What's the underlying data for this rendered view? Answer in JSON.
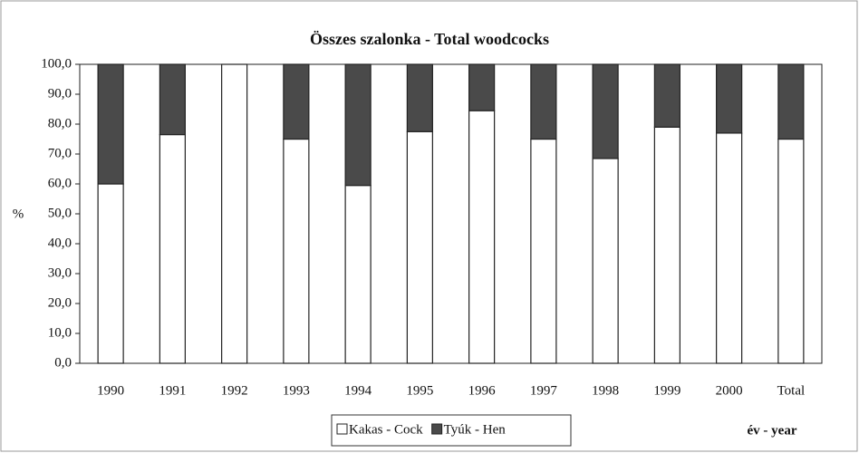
{
  "chart_data": {
    "type": "stacked_bar",
    "title": "Összes szalonka - Total  woodcocks",
    "x_label": "év - year",
    "y_label": "%",
    "categories": [
      "1990",
      "1991",
      "1992",
      "1993",
      "1994",
      "1995",
      "1996",
      "1997",
      "1998",
      "1999",
      "2000",
      "Total"
    ],
    "series": [
      {
        "name": "Kakas - Cock",
        "color": "#ffffff",
        "values": [
          60,
          76.5,
          100,
          75,
          59.5,
          77.5,
          84.5,
          75,
          68.5,
          79,
          77,
          75
        ]
      },
      {
        "name": "Tyúk - Hen",
        "color": "#4a4a4a",
        "values": [
          40,
          23.5,
          0,
          25,
          40.5,
          22.5,
          15.5,
          25,
          31.5,
          21,
          23,
          25
        ]
      }
    ],
    "ylim": [
      0,
      100
    ],
    "yticks": [
      {
        "value": 0,
        "label": "0,0"
      },
      {
        "value": 10,
        "label": "10,0"
      },
      {
        "value": 20,
        "label": "20,0"
      },
      {
        "value": 30,
        "label": "30,0"
      },
      {
        "value": 40,
        "label": "40,0"
      },
      {
        "value": 50,
        "label": "50,0"
      },
      {
        "value": 60,
        "label": "60,0"
      },
      {
        "value": 70,
        "label": "70,0"
      },
      {
        "value": 80,
        "label": "80,0"
      },
      {
        "value": 90,
        "label": "90,0"
      },
      {
        "value": 100,
        "label": "100,0"
      }
    ],
    "legend": "bottom"
  }
}
